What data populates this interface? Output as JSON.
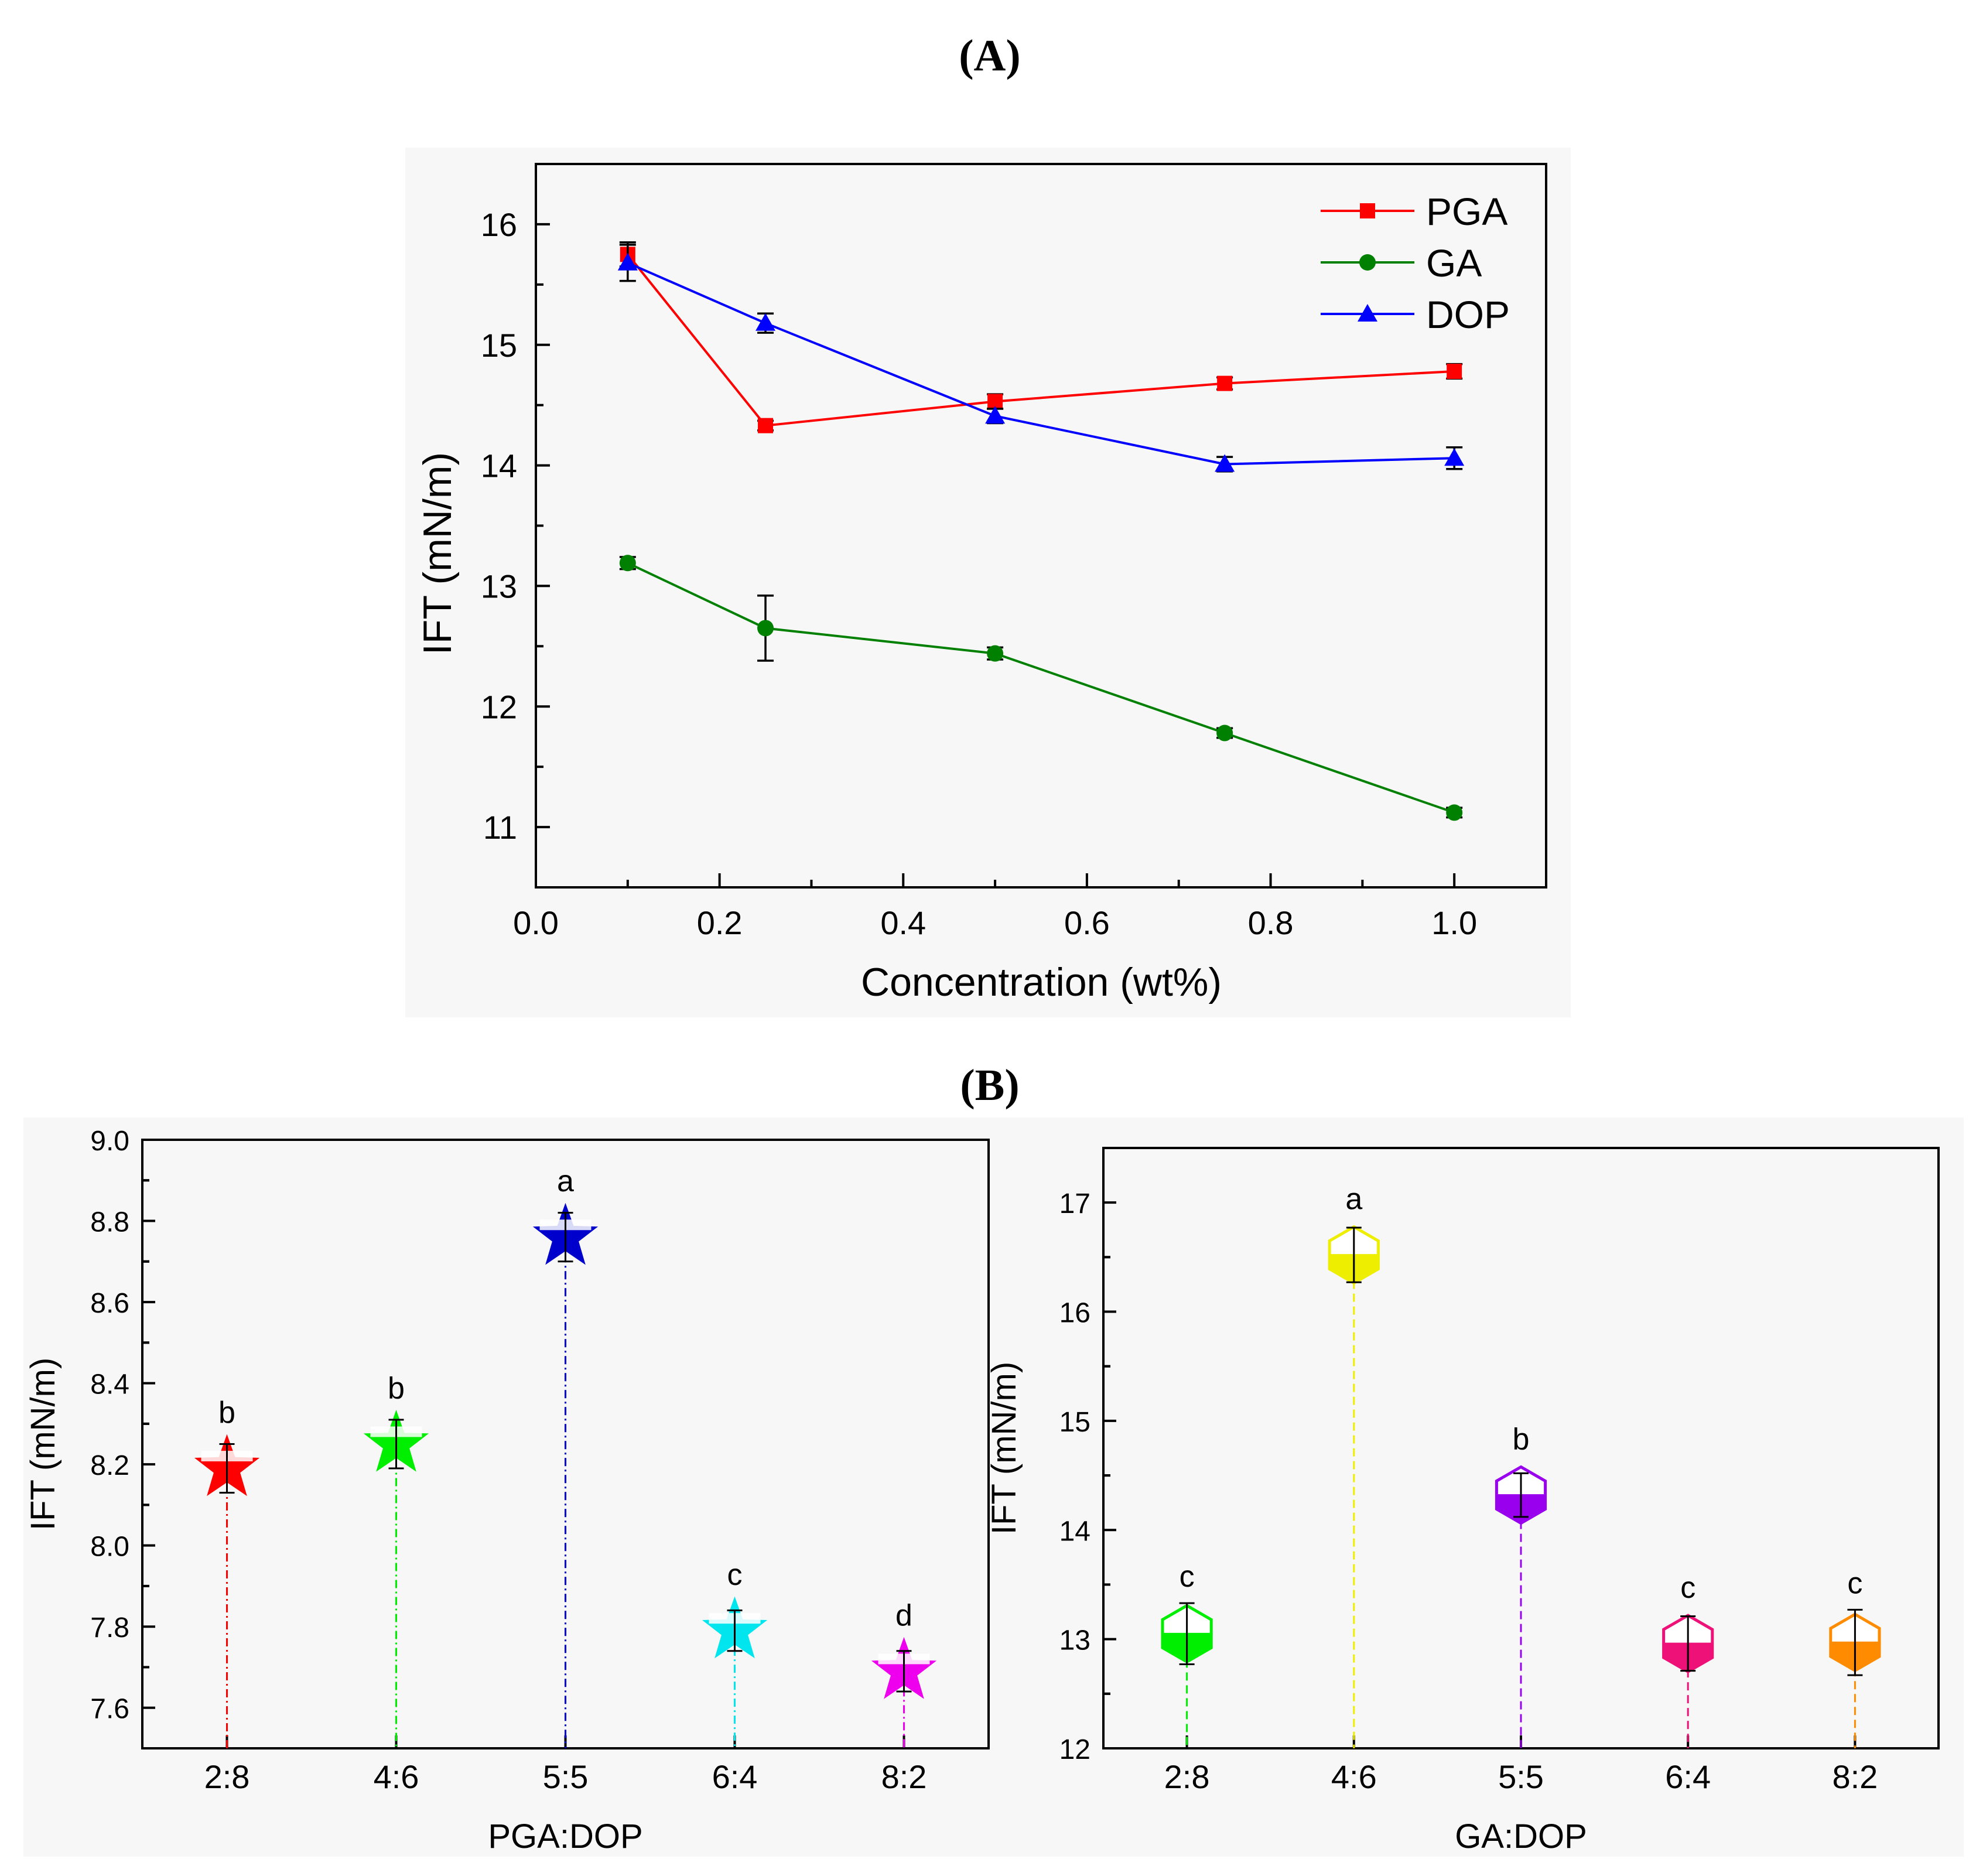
{
  "panels": {
    "a_label": "(A)",
    "b_label": "(B)"
  },
  "chart_data": [
    {
      "id": "A",
      "type": "line",
      "xlabel": "Concentration (wt%)",
      "ylabel": "IFT (mN/m)",
      "xlim": [
        0.0,
        1.1
      ],
      "ylim": [
        10.5,
        16.5
      ],
      "xticks": [
        0.0,
        0.2,
        0.4,
        0.6,
        0.8,
        1.0
      ],
      "xtick_labels": [
        "0.0",
        "0.2",
        "0.4",
        "0.6",
        "0.8",
        "1.0"
      ],
      "yticks": [
        11,
        12,
        13,
        14,
        15,
        16
      ],
      "ytick_labels": [
        "11",
        "12",
        "13",
        "14",
        "15",
        "16"
      ],
      "legend_position": "top-right",
      "series": [
        {
          "name": "PGA",
          "color": "#ff0000",
          "marker": "square",
          "x": [
            0.1,
            0.25,
            0.5,
            0.75,
            1.0
          ],
          "y": [
            15.75,
            14.33,
            14.53,
            14.68,
            14.78
          ],
          "err": [
            0.1,
            0.04,
            0.06,
            0.05,
            0.06
          ]
        },
        {
          "name": "GA",
          "color": "#008000",
          "marker": "circle",
          "x": [
            0.1,
            0.25,
            0.5,
            0.75,
            1.0
          ],
          "y": [
            13.19,
            12.65,
            12.44,
            11.78,
            11.12
          ],
          "err": [
            0.05,
            0.27,
            0.05,
            0.04,
            0.04
          ]
        },
        {
          "name": "DOP",
          "color": "#0000ff",
          "marker": "triangle",
          "x": [
            0.1,
            0.25,
            0.5,
            0.75,
            1.0
          ],
          "y": [
            15.68,
            15.18,
            14.41,
            14.01,
            14.06
          ],
          "err": [
            0.15,
            0.08,
            0.06,
            0.06,
            0.09
          ]
        }
      ]
    },
    {
      "id": "B-left",
      "type": "scatter",
      "xlabel": "PGA:DOP",
      "ylabel": "IFT (mN/m)",
      "ylim": [
        7.5,
        9.0
      ],
      "yticks": [
        7.6,
        7.8,
        8.0,
        8.2,
        8.4,
        8.6,
        8.8,
        9.0
      ],
      "ytick_labels": [
        "7.6",
        "7.8",
        "8.0",
        "8.2",
        "8.4",
        "8.6",
        "8.8",
        "9.0"
      ],
      "categories": [
        "2:8",
        "4:6",
        "5:5",
        "6:4",
        "8:2"
      ],
      "values": [
        8.19,
        8.25,
        8.76,
        7.79,
        7.69
      ],
      "errors": [
        0.06,
        0.06,
        0.06,
        0.05,
        0.05
      ],
      "letters": [
        "b",
        "b",
        "a",
        "c",
        "d"
      ],
      "colors": [
        "#ff0000",
        "#00ee00",
        "#0000cc",
        "#00e5ee",
        "#ee00ee"
      ],
      "marker": "star"
    },
    {
      "id": "B-right",
      "type": "scatter",
      "xlabel": "GA:DOP",
      "ylabel": "IFT (mN/m)",
      "ylim": [
        12,
        17.5
      ],
      "yticks": [
        12,
        13,
        14,
        15,
        16,
        17
      ],
      "ytick_labels": [
        "12",
        "13",
        "14",
        "15",
        "16",
        "17"
      ],
      "categories": [
        "2:8",
        "4:6",
        "5:5",
        "6:4",
        "8:2"
      ],
      "values": [
        13.05,
        16.52,
        14.32,
        12.96,
        12.97
      ],
      "errors": [
        0.28,
        0.25,
        0.2,
        0.25,
        0.3
      ],
      "letters": [
        "c",
        "a",
        "b",
        "c",
        "c"
      ],
      "colors": [
        "#00ee00",
        "#eeee00",
        "#9900ee",
        "#ee1177",
        "#ff8c00"
      ],
      "marker": "half-filled-hexagon"
    }
  ]
}
